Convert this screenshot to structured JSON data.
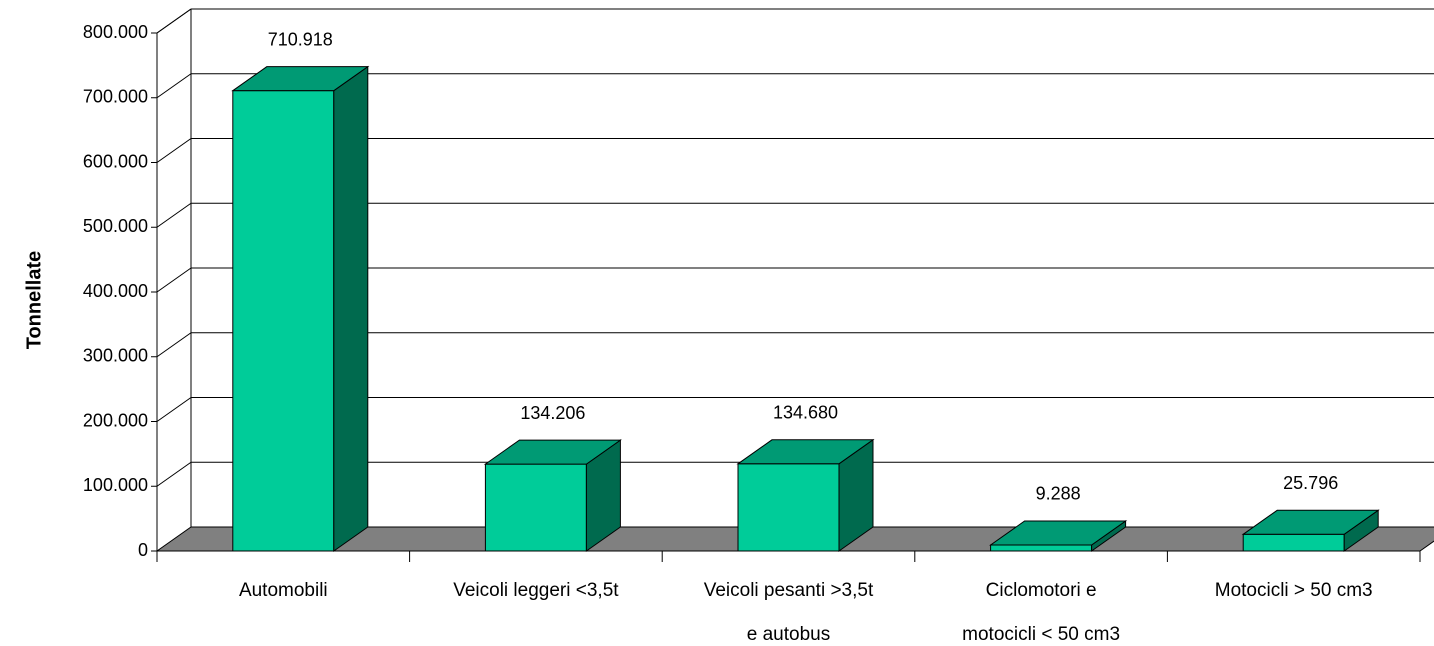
{
  "chart_data": {
    "type": "bar3d",
    "ylabel": "Tonnellate",
    "categories": [
      [
        "Automobili"
      ],
      [
        "Veicoli leggeri <3,5t"
      ],
      [
        "Veicoli pesanti >3,5t",
        "e autobus"
      ],
      [
        "Ciclomotori e",
        "motocicli < 50 cm3"
      ],
      [
        "Motocicli > 50 cm3"
      ]
    ],
    "values": [
      710918,
      134206,
      134680,
      9288,
      25796
    ],
    "value_labels": [
      "710.918",
      "134.206",
      "134.680",
      "9.288",
      "25.796"
    ],
    "color": "#00cc99",
    "side_color": "#006a4e",
    "top_color": "#009a74",
    "floor_color": "#808080",
    "ylim": [
      0,
      800000
    ],
    "yticks": [
      0,
      {
        "value": 100000,
        "label": "100.000"
      },
      {
        "value": 200000,
        "label": "200.000"
      },
      {
        "value": 300000,
        "label": "300.000"
      },
      {
        "value": 400000,
        "label": "400.000"
      },
      {
        "value": 500000,
        "label": "500.000"
      },
      {
        "value": 600000,
        "label": "600.000"
      },
      {
        "value": 700000,
        "label": "700.000"
      },
      {
        "value": 800000,
        "label": "800.000"
      }
    ],
    "grid": true
  }
}
